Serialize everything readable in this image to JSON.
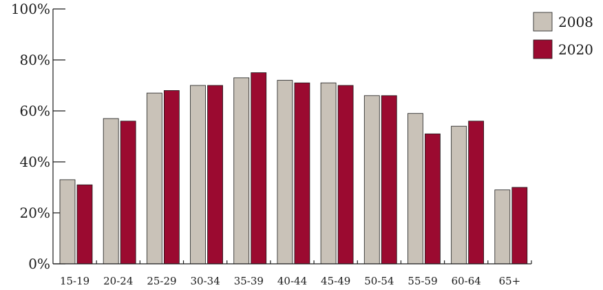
{
  "chart_data": {
    "type": "bar",
    "title": "",
    "xlabel": "",
    "ylabel": "",
    "categories": [
      "15-19",
      "20-24",
      "25-29",
      "30-34",
      "35-39",
      "40-44",
      "45-49",
      "50-54",
      "55-59",
      "60-64",
      "65+"
    ],
    "series": [
      {
        "name": "2008",
        "color": "#c9c2b8",
        "values": [
          33,
          57,
          67,
          70,
          73,
          72,
          71,
          66,
          59,
          54,
          29
        ]
      },
      {
        "name": "2020",
        "color": "#9b0a30",
        "values": [
          31,
          56,
          68,
          70,
          75,
          71,
          70,
          66,
          51,
          56,
          30
        ]
      }
    ],
    "ylim": [
      0,
      100
    ],
    "yticks": [
      "0%",
      "20%",
      "40%",
      "60%",
      "80%",
      "100%"
    ],
    "grid": false,
    "legend_position": "top-right"
  }
}
